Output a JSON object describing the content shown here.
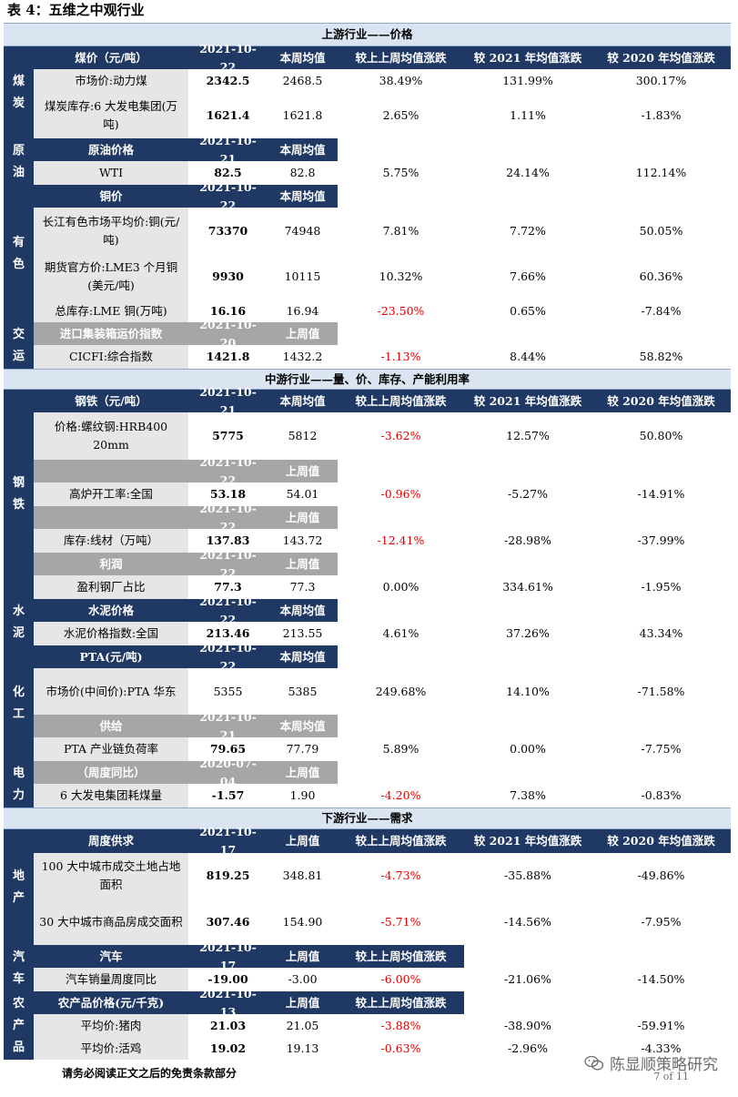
{
  "title": "表 4：五维之中观行业",
  "sections": {
    "upstream": "上游行业——价格",
    "midstream": "中游行业——量、价、库存、产能利用率",
    "downstream": "下游行业——需求"
  },
  "sides": {
    "coal": "煤炭",
    "oil": "原油",
    "metal": "有色",
    "transport": "交运",
    "steel": "钢铁",
    "cement": "水泥",
    "chem": "化工",
    "power": "电力",
    "estate": "地产",
    "auto": "汽车",
    "agri": "农产品"
  },
  "cols": {
    "week_avg": "本周均值",
    "last_week": "上周值",
    "vs_last_week": "较上上周均值涨跌",
    "vs_2021": "较 2021 年均值涨跌",
    "vs_2020": "较 2020 年均值涨跌"
  },
  "headers": {
    "coal": {
      "label": "煤价（元/吨）",
      "date": "2021-10-22"
    },
    "oil": {
      "label": "原油价格",
      "date": "2021-10-21"
    },
    "copper": {
      "label": "铜价",
      "date": "2021-10-22"
    },
    "container": {
      "label": "进口集装箱运价指数",
      "date": "2021-10-20"
    },
    "steel": {
      "label": "钢铁（元/吨）",
      "date": "2021-10-21"
    },
    "steel_blast": {
      "label": "",
      "date": "2021-10-22"
    },
    "steel_inv": {
      "label": "",
      "date": "2021-10-22"
    },
    "steel_profit": {
      "label": "利润",
      "date": "2021-10-22"
    },
    "cement": {
      "label": "水泥价格",
      "date": "2021-10-22"
    },
    "pta": {
      "label": "PTA(元/吨)",
      "date": "2021-10-22"
    },
    "pta_supply": {
      "label": "供给",
      "date": "2021-10-21"
    },
    "power": {
      "label": "（周度同比）",
      "date": "2020-07-04"
    },
    "estate": {
      "label": "周度供求",
      "date": "2021-10-17"
    },
    "auto": {
      "label": "汽车",
      "date": "2021-10-17"
    },
    "agri": {
      "label": "农产品价格(元/千克)",
      "date": "2021-10-13"
    }
  },
  "rows": {
    "coal1": {
      "name": "市场价:动力煤",
      "v1": "2342.5",
      "v2": "2468.5",
      "c1": "38.49%",
      "c2": "131.99%",
      "c3": "300.17%"
    },
    "coal2": {
      "name": "煤炭库存:6 大发电集团(万吨)",
      "v1": "1621.4",
      "v2": "1621.8",
      "c1": "2.65%",
      "c2": "1.11%",
      "c3": "-1.83%"
    },
    "oil1": {
      "name": "WTI",
      "v1": "82.5",
      "v2": "82.8",
      "c1": "5.75%",
      "c2": "24.14%",
      "c3": "112.14%"
    },
    "cu1": {
      "name": "长江有色市场平均价:铜(元/吨)",
      "v1": "73370",
      "v2": "74948",
      "c1": "7.81%",
      "c2": "7.72%",
      "c3": "50.05%"
    },
    "cu2": {
      "name": "期货官方价:LME3 个月铜(美元/吨)",
      "v1": "9930",
      "v2": "10115",
      "c1": "10.32%",
      "c2": "7.66%",
      "c3": "60.36%"
    },
    "cu3": {
      "name": "总库存:LME 铜(万吨)",
      "v1": "16.16",
      "v2": "16.94",
      "c1": "-23.50%",
      "c2": "0.65%",
      "c3": "-7.84%"
    },
    "ccfi": {
      "name": "CICFI:综合指数",
      "v1": "1421.8",
      "v2": "1432.2",
      "c1": "-1.13%",
      "c2": "8.44%",
      "c3": "58.82%"
    },
    "rebar": {
      "name": "价格:螺纹钢:HRB400 20mm",
      "v1": "5775",
      "v2": "5812",
      "c1": "-3.62%",
      "c2": "12.57%",
      "c3": "50.80%"
    },
    "blast": {
      "name": "高炉开工率:全国",
      "v1": "53.18",
      "v2": "54.01",
      "c1": "-0.96%",
      "c2": "-5.27%",
      "c3": "-14.91%"
    },
    "wire": {
      "name": "库存:线材（万吨）",
      "v1": "137.83",
      "v2": "143.72",
      "c1": "-12.41%",
      "c2": "-28.98%",
      "c3": "-37.99%"
    },
    "profit": {
      "name": "盈利钢厂占比",
      "v1": "77.3",
      "v2": "77.3",
      "c1": "0.00%",
      "c2": "334.61%",
      "c3": "-1.95%"
    },
    "cement1": {
      "name": "水泥价格指数:全国",
      "v1": "213.46",
      "v2": "213.55",
      "c1": "4.61%",
      "c2": "37.26%",
      "c3": "43.34%"
    },
    "pta1": {
      "name": "市场价(中间价):PTA 华东",
      "v1": "5355",
      "v2": "5385",
      "c1": "249.68%",
      "c2": "14.10%",
      "c3": "-71.58%"
    },
    "pta2": {
      "name": "PTA 产业链负荷率",
      "v1": "79.65",
      "v2": "77.79",
      "c1": "5.89%",
      "c2": "0.00%",
      "c3": "-7.75%"
    },
    "power1": {
      "name": "6 大发电集团耗煤量",
      "v1": "-1.57",
      "v2": "1.90",
      "c1": "-4.20%",
      "c2": "7.38%",
      "c3": "-0.83%"
    },
    "land": {
      "name": "100 大中城市成交土地占地面积",
      "v1": "819.25",
      "v2": "348.81",
      "c1": "-4.73%",
      "c2": "-35.88%",
      "c3": "-49.86%"
    },
    "house": {
      "name": "30 大中城市商品房成交面积",
      "v1": "307.46",
      "v2": "154.90",
      "c1": "-5.71%",
      "c2": "-14.56%",
      "c3": "-7.95%"
    },
    "car": {
      "name": "汽车销量周度同比",
      "v1": "-19.00",
      "v2": "-3.00",
      "c1": "-6.00%",
      "c2": "-21.06%",
      "c3": "-14.50%"
    },
    "pork": {
      "name": "平均价:猪肉",
      "v1": "21.03",
      "v2": "21.05",
      "c1": "-3.88%",
      "c2": "-38.90%",
      "c3": "-59.91%"
    },
    "chicken": {
      "name": "平均价:活鸡",
      "v1": "19.02",
      "v2": "19.13",
      "c1": "-0.63%",
      "c2": "-2.96%",
      "c3": "-4.33%"
    }
  },
  "footnote": "请务必阅读正文之后的免责条款部分",
  "watermark": "陈显顺策略研究",
  "page": "7 of 11",
  "colors": {
    "navy": "#1f3864",
    "band": "#dbe5f1",
    "grey_header": "#a6a6a6",
    "grey_cell": "#e7e6e6",
    "negative": "#e00000"
  }
}
